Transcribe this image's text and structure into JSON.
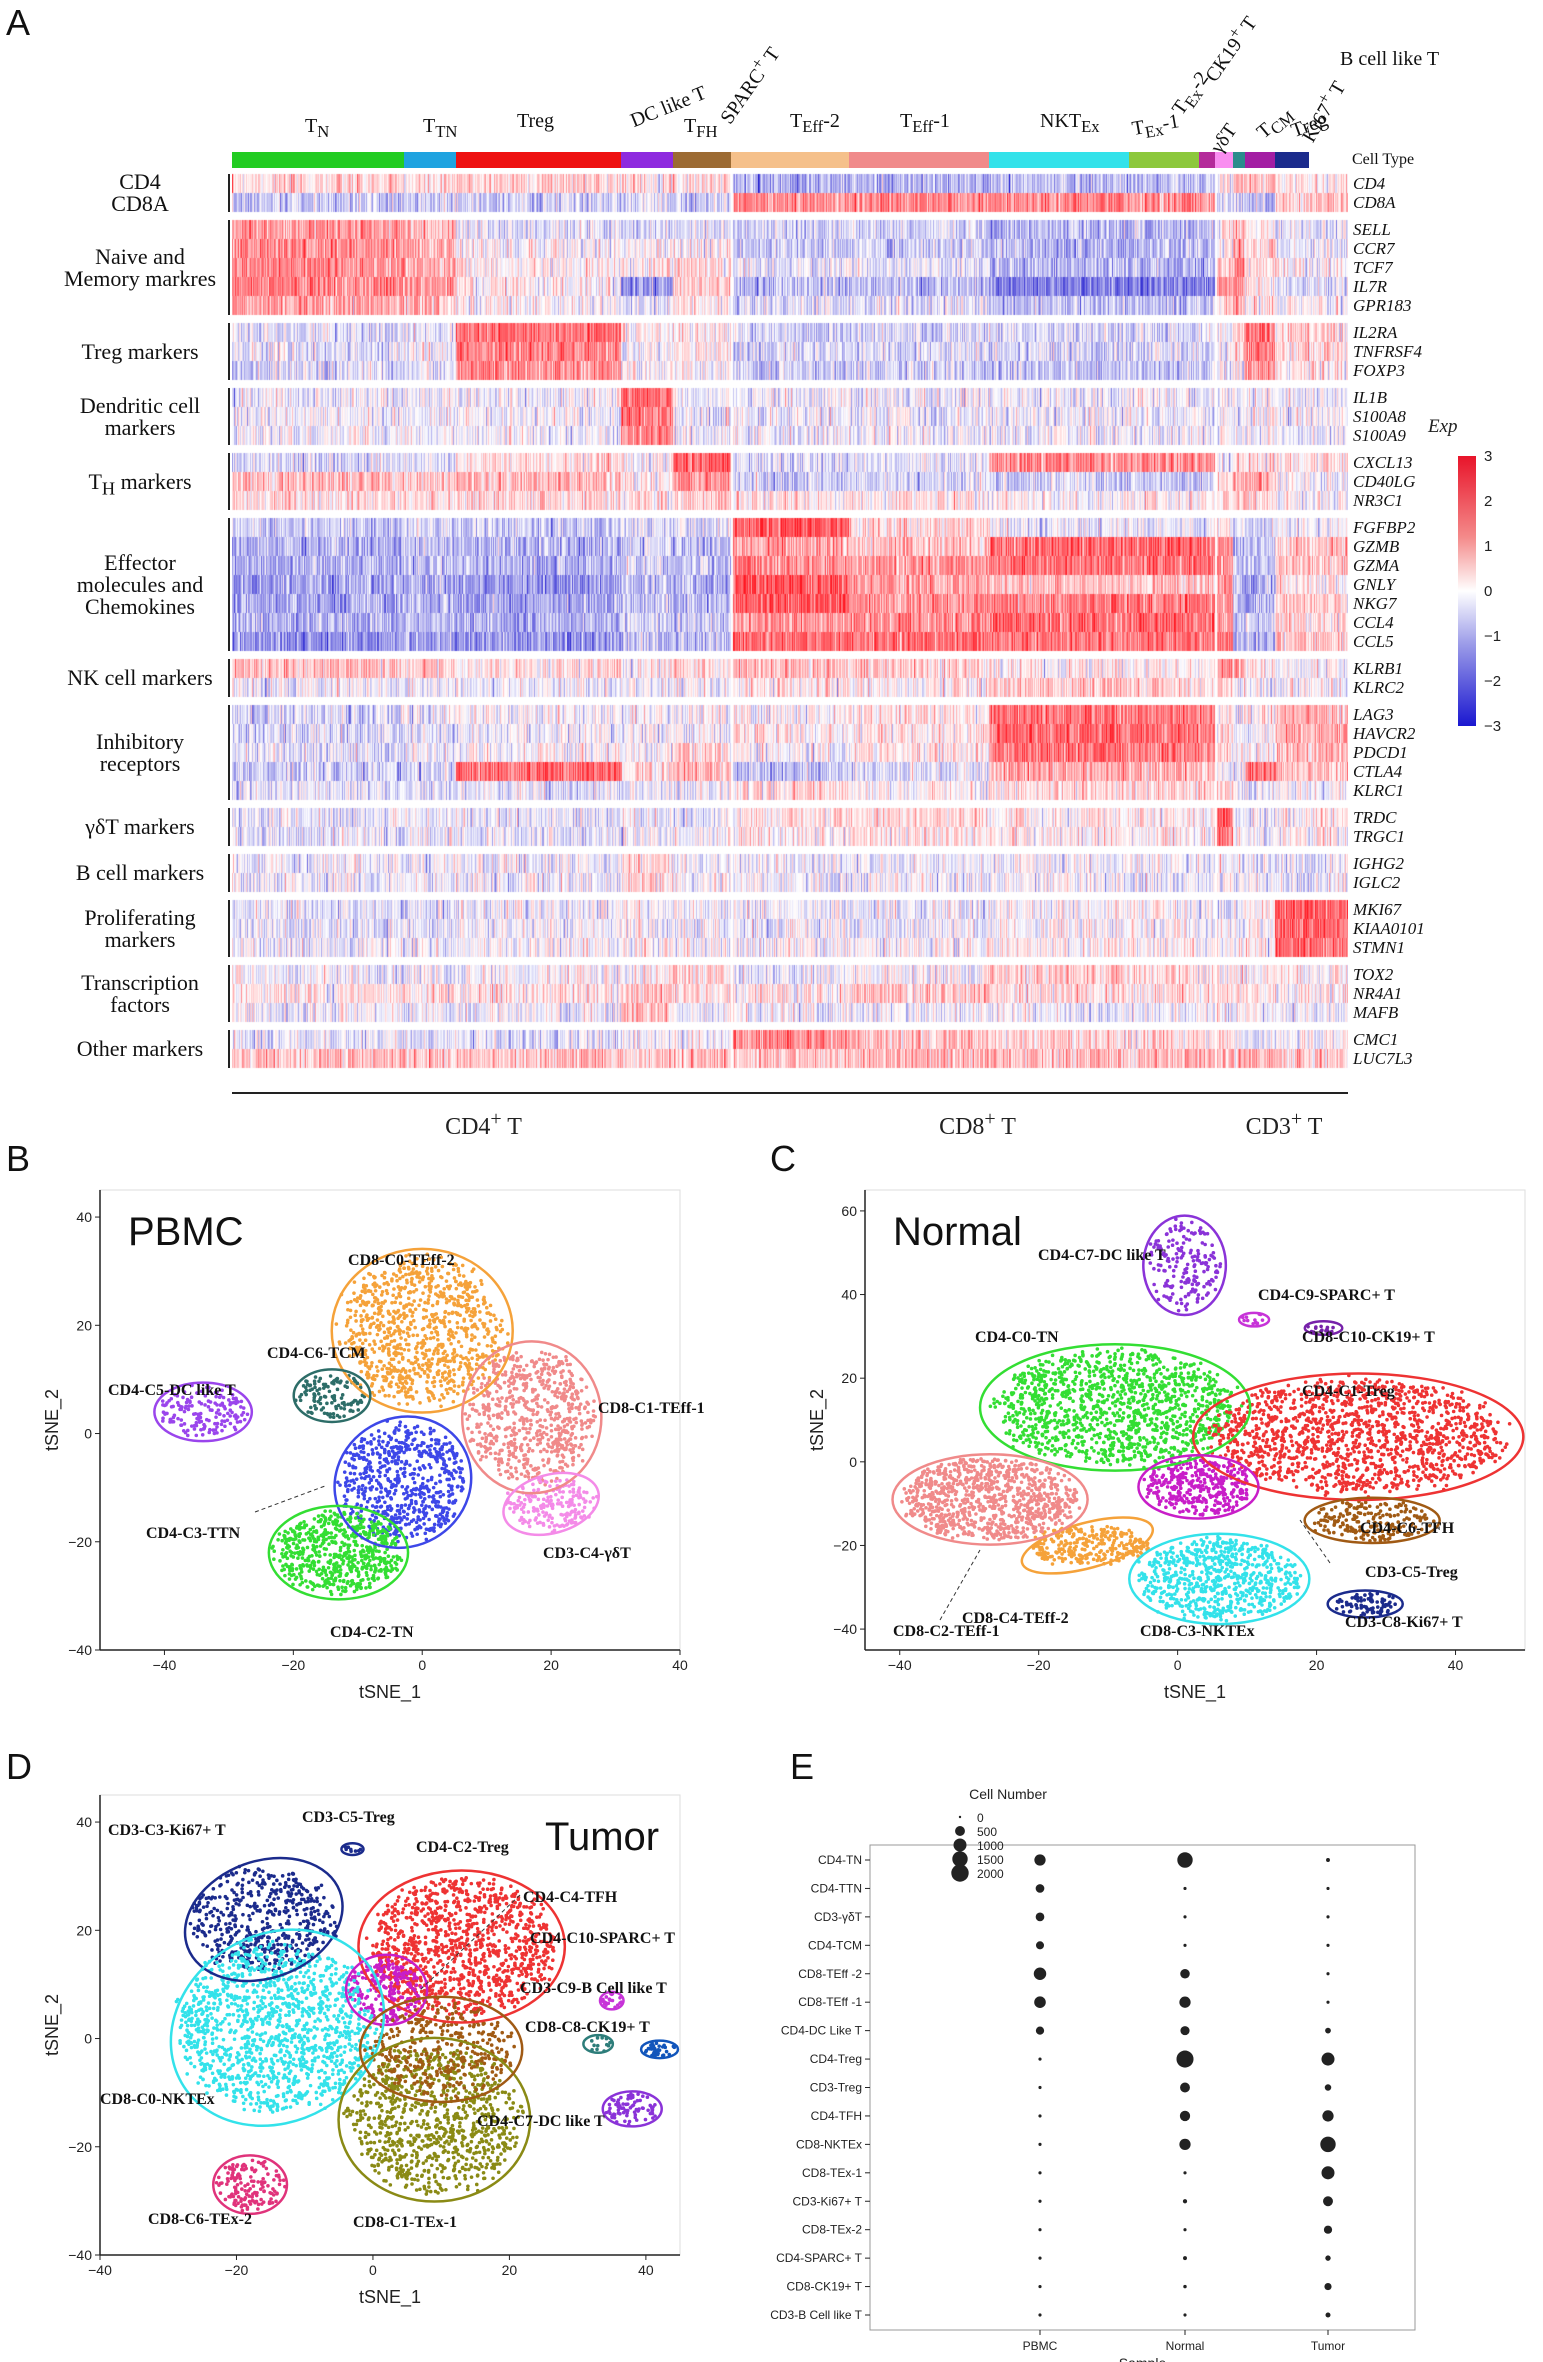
{
  "panels": {
    "a": "A",
    "b": "B",
    "c": "C",
    "d": "D",
    "e": "E"
  },
  "heatmap": {
    "cell_types": [
      "T_N",
      "T_TN",
      "Treg",
      "DC like T",
      "T_FH",
      "SPARC+ T",
      "T_Eff-2",
      "T_Eff-1",
      "NKT_Ex",
      "T_Ex-1",
      "T_Ex-2",
      "CK19+ T",
      "B cell like T",
      "γδT",
      "T_CM",
      "Treg",
      "Ki67+ T"
    ],
    "cell_type_label": "Cell Type",
    "legend_title": "Exp",
    "legend_ticks": [
      "3",
      "2",
      "1",
      "0",
      "−1",
      "−2",
      "−3"
    ],
    "categories": [
      "CD4\nCD8A",
      "Naive and\nMemory markres",
      "Treg markers",
      "Dendritic cell\nmarkers",
      "T_H markers",
      "Effector\nmolecules and\nChemokines",
      "NK cell markers",
      "Inhibitory\nreceptors",
      "γδT markers",
      "B cell markers",
      "Proliferating\nmarkers",
      "Transcription\nfactors",
      "Other markers"
    ],
    "genes": [
      [
        "CD4",
        "CD8A"
      ],
      [
        "SELL",
        "CCR7",
        "TCF7",
        "IL7R",
        "GPR183"
      ],
      [
        "IL2RA",
        "TNFRSF4",
        "FOXP3"
      ],
      [
        "IL1B",
        "S100A8",
        "S100A9"
      ],
      [
        "CXCL13",
        "CD40LG",
        "NR3C1"
      ],
      [
        "FGFBP2",
        "GZMB",
        "GZMA",
        "GNLY",
        "NKG7",
        "CCL4",
        "CCL5"
      ],
      [
        "KLRB1",
        "KLRC2"
      ],
      [
        "LAG3",
        "HAVCR2",
        "PDCD1",
        "CTLA4",
        "KLRC1"
      ],
      [
        "TRDC",
        "TRGC1"
      ],
      [
        "IGHG2",
        "IGLC2"
      ],
      [
        "MKI67",
        "KIAA0101",
        "STMN1"
      ],
      [
        "TOX2",
        "NR4A1",
        "MAFB"
      ],
      [
        "CMC1",
        "LUC7L3"
      ]
    ],
    "groups": [
      "CD4+ T",
      "CD8+ T",
      "CD3+ T"
    ]
  },
  "panelB": {
    "title": "PBMC",
    "xlabel": "tSNE_1",
    "ylabel": "tSNE_2",
    "xticks": [
      "−40",
      "−20",
      "0",
      "20",
      "40"
    ],
    "yticks": [
      "40",
      "20",
      "0",
      "−20",
      "−40"
    ],
    "clusters": [
      "CD8-C0-TEff-2",
      "CD4-C6-TCM",
      "CD4-C5-DC like T",
      "CD8-C1-TEff-1",
      "CD4-C3-TTN",
      "CD3-C4-γδT",
      "CD4-C2-TN"
    ]
  },
  "panelC": {
    "title": "Normal",
    "xlabel": "tSNE_1",
    "ylabel": "tSNE_2",
    "xticks": [
      "−40",
      "−20",
      "0",
      "20",
      "40"
    ],
    "yticks": [
      "60",
      "40",
      "20",
      "0",
      "−20",
      "−40"
    ],
    "clusters": [
      "CD4-C7-DC like T",
      "CD4-C9-SPARC+ T",
      "CD8-C10-CK19+ T",
      "CD4-C0-TN",
      "CD4-C1-Treg",
      "CD4-C6-TFH",
      "CD3-C5-Treg",
      "CD8-C4-TEff-2",
      "CD8-C2-TEff-1",
      "CD8-C3-NKTEx",
      "CD3-C8-Ki67+ T"
    ]
  },
  "panelD": {
    "title": "Tumor",
    "xlabel": "tSNE_1",
    "ylabel": "tSNE_2",
    "xticks": [
      "−40",
      "−20",
      "0",
      "20",
      "40"
    ],
    "yticks": [
      "40",
      "20",
      "0",
      "−20",
      "−40"
    ],
    "clusters": [
      "CD3-C3-Ki67+ T",
      "CD3-C5-Treg",
      "CD4-C2-Treg",
      "CD4-C4-TFH",
      "CD4-C10-SPARC+ T",
      "CD3-C9-B Cell like T",
      "CD8-C8-CK19+ T",
      "CD8-C0-NKTEx",
      "CD4-C7-DC like T",
      "CD8-C6-TEx-2",
      "CD8-C1-TEx-1"
    ]
  },
  "chart_data": {
    "type": "scatter",
    "title": "",
    "xlabel": "Sample",
    "ylabel": "",
    "legend_title": "Cell Number",
    "legend_values": [
      0,
      500,
      1000,
      1500,
      2000
    ],
    "x": [
      "PBMC",
      "Normal",
      "Tumor"
    ],
    "categories": [
      "CD4-TN",
      "CD4-TTN",
      "CD3-γδT",
      "CD4-TCM",
      "CD8-TEff -2",
      "CD8-TEff -1",
      "CD4-DC Like T",
      "CD4-Treg",
      "CD3-Treg",
      "CD4-TFH",
      "CD8-NKTEx",
      "CD8-TEx-1",
      "CD3-Ki67+ T",
      "CD8-TEx-2",
      "CD4-SPARC+ T",
      "CD8-CK19+ T",
      "CD3-B Cell like T"
    ],
    "series": [
      {
        "name": "PBMC",
        "values": [
          700,
          350,
          350,
          280,
          900,
          750,
          300,
          5,
          5,
          5,
          5,
          5,
          5,
          5,
          5,
          5,
          5
        ]
      },
      {
        "name": "Normal",
        "values": [
          1500,
          5,
          5,
          5,
          450,
          700,
          400,
          1900,
          500,
          550,
          700,
          5,
          30,
          5,
          20,
          10,
          5
        ]
      },
      {
        "name": "Tumor",
        "values": [
          20,
          5,
          5,
          5,
          5,
          5,
          100,
          1000,
          150,
          700,
          1500,
          1000,
          500,
          300,
          80,
          200,
          60
        ]
      }
    ]
  }
}
